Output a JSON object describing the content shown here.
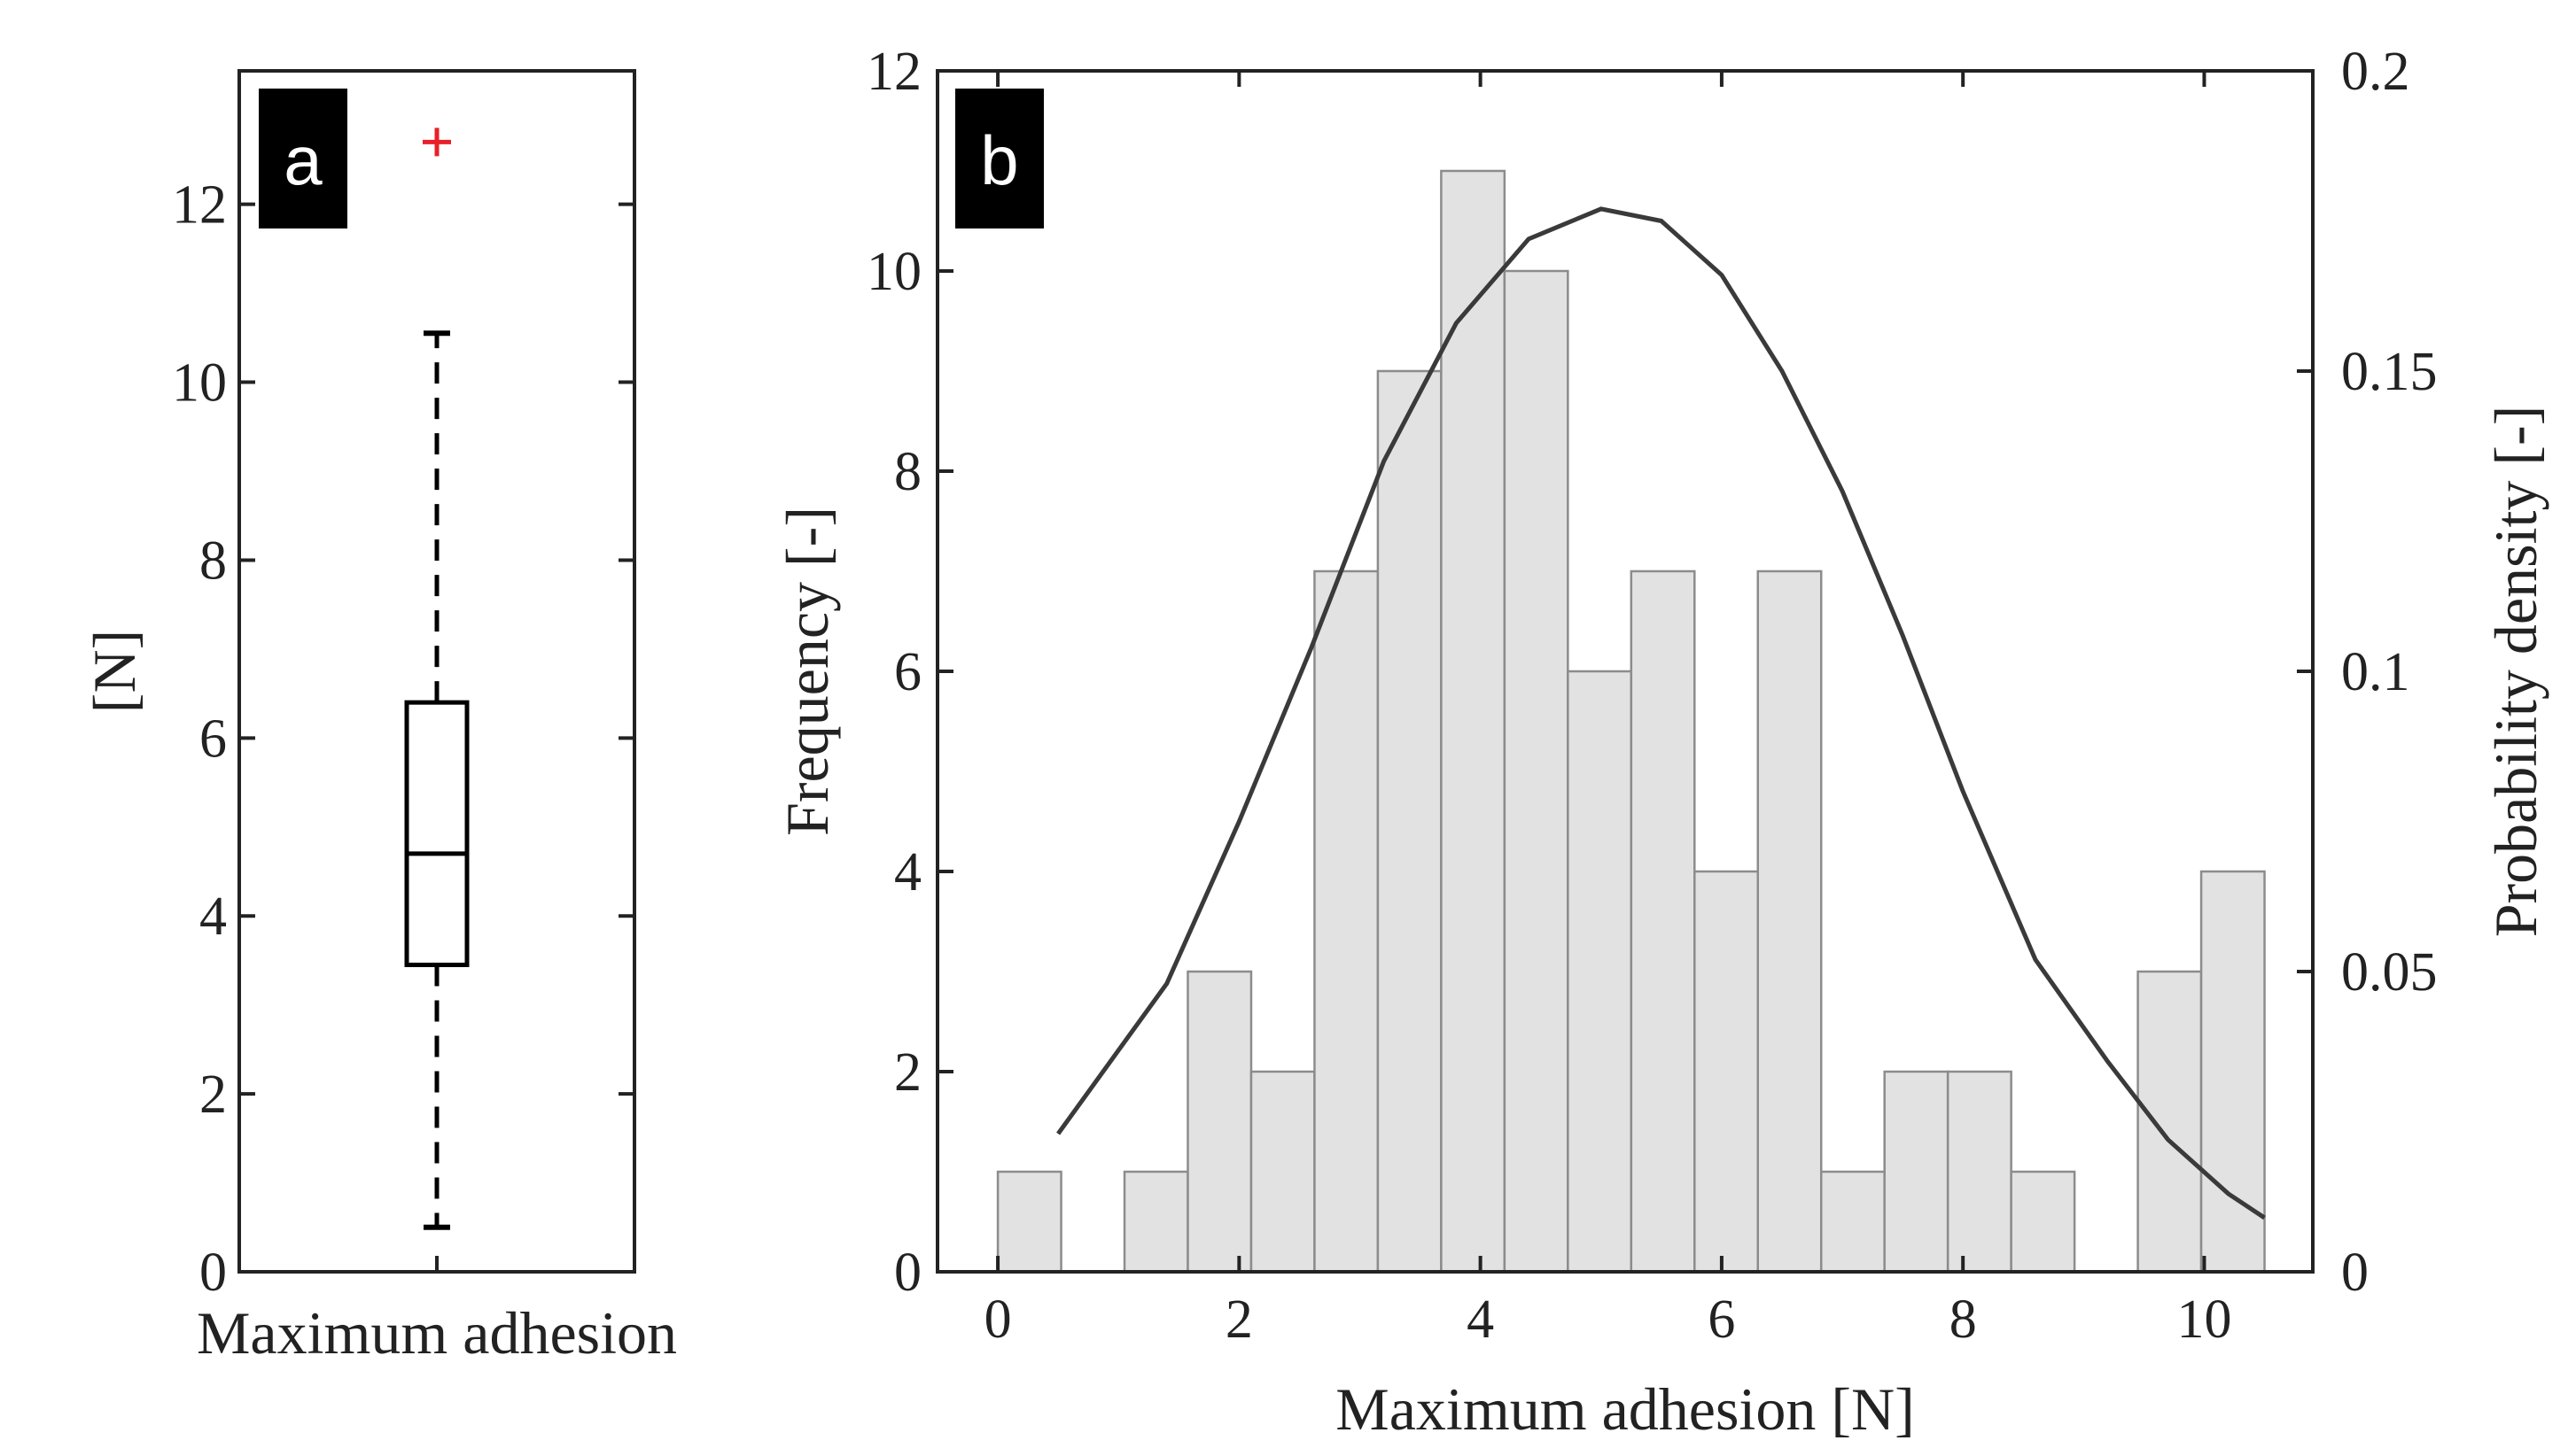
{
  "chart_data": [
    {
      "panel": "a",
      "type": "box",
      "panel_label": "a",
      "xlabel": "Maximum adhesion",
      "ylabel": "[N]",
      "ylim": [
        0,
        13.5
      ],
      "yticks": [
        "0",
        "2",
        "4",
        "6",
        "8",
        "10",
        "12"
      ],
      "box": {
        "whisker_low": 0.5,
        "q1": 3.45,
        "median": 4.7,
        "q3": 6.4,
        "whisker_high": 10.55
      },
      "outliers": [
        12.7
      ],
      "colors": {
        "box": "#000000",
        "outlier": "#e8202a"
      }
    },
    {
      "panel": "b",
      "type": "bar",
      "panel_label": "b",
      "xlabel": "Maximum adhesion [N]",
      "ylabel": "Frequency [-]",
      "y2label": "Probability density [-]",
      "xlim": [
        -0.5,
        10.9
      ],
      "ylim": [
        0,
        12
      ],
      "y2lim": [
        0,
        0.2
      ],
      "xticks": [
        "0",
        "2",
        "4",
        "6",
        "8",
        "10"
      ],
      "yticks": [
        "0",
        "2",
        "4",
        "6",
        "8",
        "10",
        "12"
      ],
      "y2ticks": [
        "0",
        "0.05",
        "0.1",
        "0.15",
        "0.2"
      ],
      "bin_edges": [
        0,
        0.525,
        1.05,
        1.575,
        2.1,
        2.625,
        3.15,
        3.675,
        4.2,
        4.725,
        5.25,
        5.775,
        6.3,
        6.825,
        7.35,
        7.875,
        8.4,
        8.925,
        9.45,
        9.975,
        10.5
      ],
      "frequencies": [
        1,
        0,
        1,
        3,
        2,
        7,
        9,
        11,
        10,
        6,
        7,
        4,
        7,
        1,
        2,
        2,
        1,
        0,
        3,
        4
      ],
      "series": [
        {
          "name": "Probability density",
          "type": "line",
          "x": [
            0.5,
            1.4,
            2.0,
            2.6,
            3.2,
            3.8,
            4.4,
            5.0,
            5.5,
            6.0,
            6.5,
            7.0,
            7.5,
            8.0,
            8.6,
            9.2,
            9.7,
            10.2,
            10.5
          ],
          "y": [
            0.023,
            0.048,
            0.075,
            0.104,
            0.135,
            0.158,
            0.172,
            0.177,
            0.175,
            0.166,
            0.15,
            0.13,
            0.106,
            0.08,
            0.052,
            0.035,
            0.022,
            0.013,
            0.009
          ]
        }
      ],
      "colors": {
        "bar_fill": "#e2e2e2",
        "bar_edge": "#8c8c8c",
        "curve": "#3a3a3a"
      }
    }
  ]
}
